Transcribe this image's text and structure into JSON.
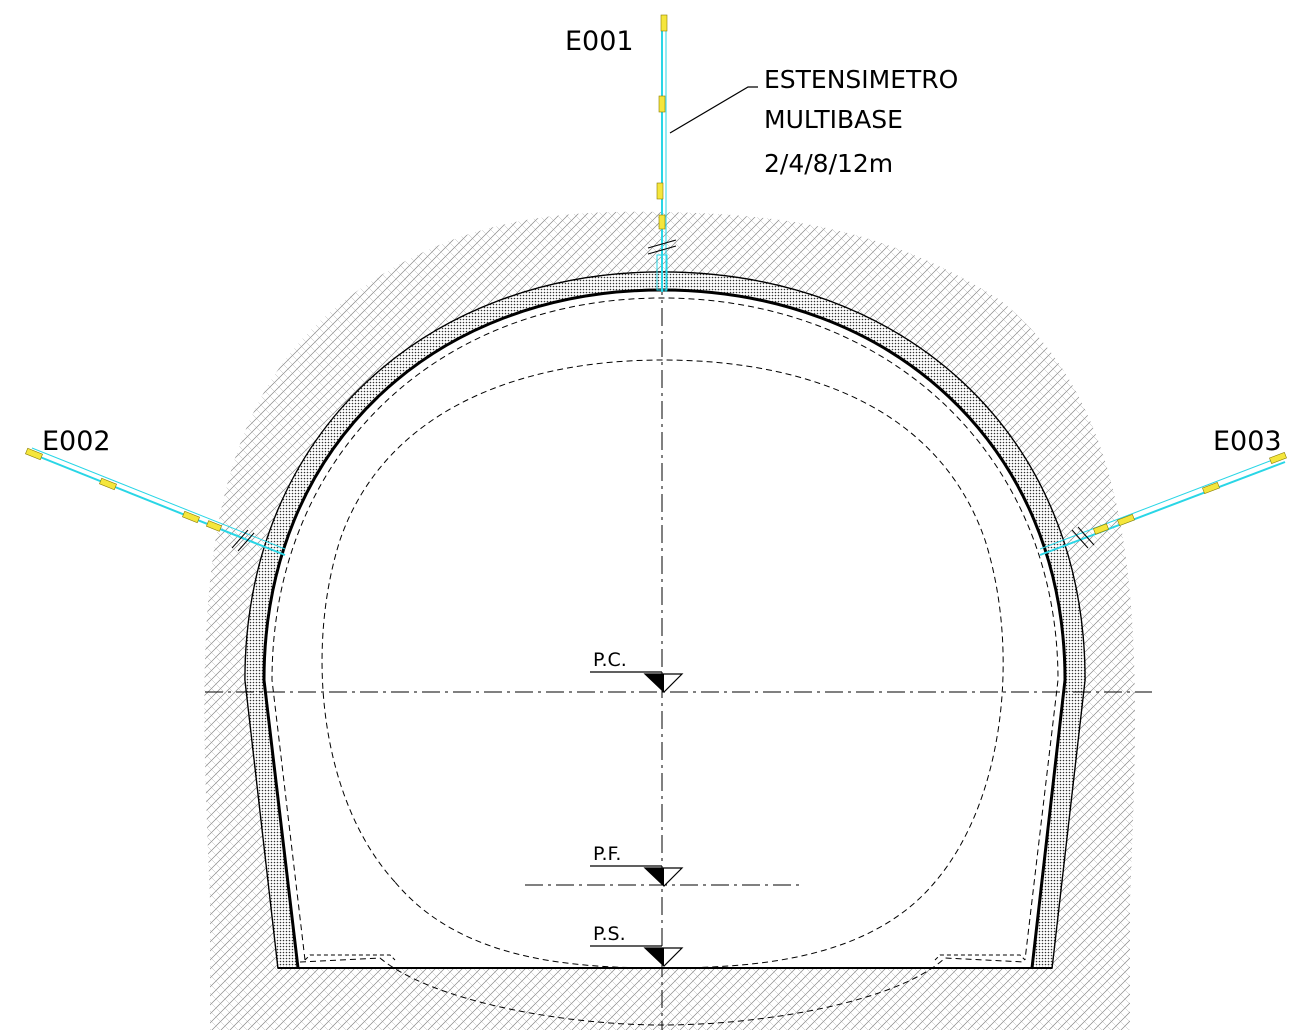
{
  "extensometers": [
    {
      "id": "E001"
    },
    {
      "id": "E002"
    },
    {
      "id": "E003"
    }
  ],
  "callout": {
    "line1": "ESTENSIMETRO",
    "line2": "MULTIBASE",
    "line3": "2/4/8/12m"
  },
  "levels": [
    {
      "label": "P.C."
    },
    {
      "label": "P.F."
    },
    {
      "label": "P.S."
    }
  ],
  "colors": {
    "extensometer": "#29d6e6",
    "anchor": "#f5e63c",
    "lining": "#000000",
    "ground_hatch": "#777777"
  }
}
